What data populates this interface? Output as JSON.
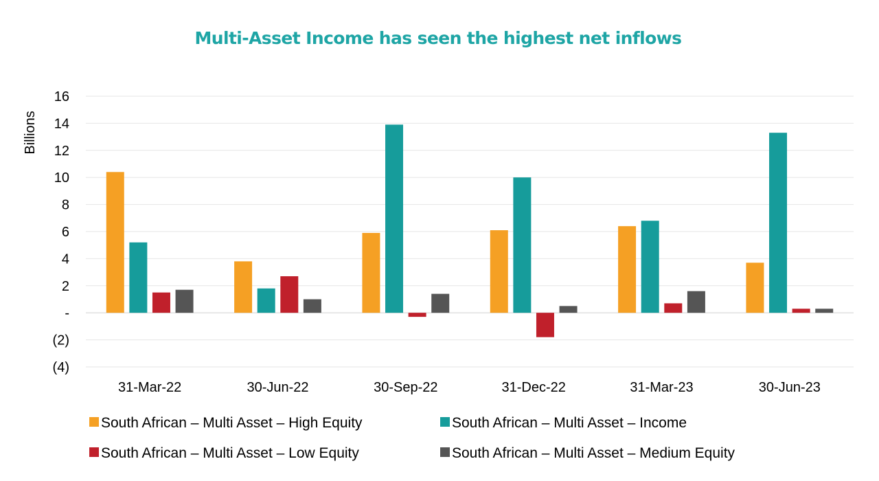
{
  "chart_data": {
    "type": "bar",
    "title": "Multi-Asset Income has seen the highest net inflows",
    "ylabel": "Billions",
    "xlabel": "",
    "ylim": [
      -4,
      16
    ],
    "yticks": [
      {
        "value": 16,
        "label": "16"
      },
      {
        "value": 14,
        "label": "14"
      },
      {
        "value": 12,
        "label": "12"
      },
      {
        "value": 10,
        "label": "10"
      },
      {
        "value": 8,
        "label": "8"
      },
      {
        "value": 6,
        "label": "6"
      },
      {
        "value": 4,
        "label": "4"
      },
      {
        "value": 2,
        "label": "2"
      },
      {
        "value": 0,
        "label": "-"
      },
      {
        "value": -2,
        "label": "(2)"
      },
      {
        "value": -4,
        "label": "(4)"
      }
    ],
    "grid": true,
    "legend_position": "bottom",
    "categories": [
      "31-Mar-22",
      "30-Jun-22",
      "30-Sep-22",
      "31-Dec-22",
      "31-Mar-23",
      "30-Jun-23"
    ],
    "series": [
      {
        "name": "South African – Multi Asset – High Equity",
        "color": "#F5A024",
        "values": [
          10.4,
          3.8,
          5.9,
          6.1,
          6.4,
          3.7
        ]
      },
      {
        "name": "South African – Multi Asset – Income",
        "color": "#169C9B",
        "values": [
          5.2,
          1.8,
          13.9,
          10.0,
          6.8,
          13.3
        ]
      },
      {
        "name": "South African – Multi Asset – Low Equity",
        "color": "#C0202B",
        "values": [
          1.5,
          2.7,
          -0.3,
          -1.8,
          0.7,
          0.3
        ]
      },
      {
        "name": "South African – Multi Asset – Medium Equity",
        "color": "#555555",
        "values": [
          1.7,
          1.0,
          1.4,
          0.5,
          1.6,
          0.3
        ]
      }
    ],
    "colors": {
      "title": "#1EA5A5",
      "grid": "#E6E6E6",
      "zero_line": "#D0D0D0"
    }
  }
}
